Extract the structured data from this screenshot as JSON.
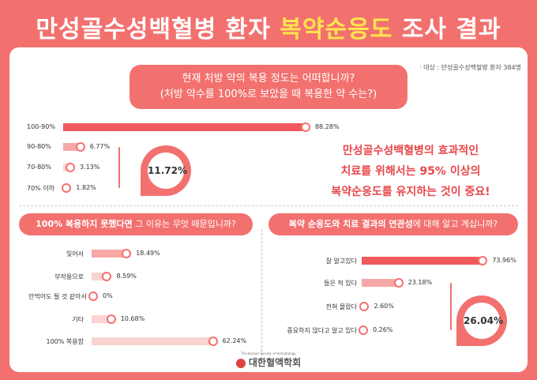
{
  "title": {
    "part1": "만성골수성백혈병 환자",
    "highlight": "복약순응도",
    "part2": "조사 결과"
  },
  "target_note": "· 대상 : 만성골수성백혈병 환자 384명",
  "q1": {
    "line1": "현재 처방 약의 복용 정도는 어떠합니까?",
    "line2": "(처방 약수를 100%로 보았을 때 복용한 약 수는?)"
  },
  "q2": {
    "bold": "100% 복용하지 못했다면",
    "rest": " 그 이유는 무엇 때문입니까?"
  },
  "q3": {
    "bold": "복약 순응도와 치료 결과의 연관성",
    "rest": "에 대해 알고 계십니까?"
  },
  "message": [
    "만성골수성백혈병의 효과적인",
    "치료를 위해서는 95% 이상의",
    "복약순응도를 유지하는 것이 중요!"
  ],
  "footer": {
    "small": "The Korean Society of Hematology",
    "name": "대한혈액학회"
  },
  "chart_data": [
    {
      "type": "bar",
      "categories": [
        "100-90%",
        "90-80%",
        "70-80%",
        "70% 이하"
      ],
      "values": [
        88.28,
        6.77,
        3.13,
        1.82
      ],
      "value_labels": [
        "88.28%",
        "6.77%",
        "3.13%",
        "1.82%"
      ],
      "group_total": "11.72%"
    },
    {
      "type": "bar",
      "categories": [
        "잊어서",
        "부작용으로",
        "안먹어도 될 것 같아서",
        "기타",
        "100% 복용함"
      ],
      "values": [
        18.49,
        8.59,
        0,
        10.68,
        62.24
      ],
      "value_labels": [
        "18.49%",
        "8.59%",
        "0%",
        "10.68%",
        "62.24%"
      ]
    },
    {
      "type": "bar",
      "categories": [
        "잘 알고있다",
        "들은 적 있다",
        "전혀 몰랐다",
        "중요하지 않다고 알고 있다"
      ],
      "values": [
        73.96,
        23.18,
        2.6,
        0.26
      ],
      "value_labels": [
        "73.96%",
        "23.18%",
        "2.60%",
        "0.26%"
      ],
      "group_total": "26.04%"
    }
  ],
  "colors": {
    "accent": "#f2716f",
    "bar_main": "#f05a5c",
    "bar_light": "#f7a8a6",
    "bar_lighter": "#fbd3d2",
    "message": "#e8474a",
    "highlight": "#ffe44d"
  }
}
